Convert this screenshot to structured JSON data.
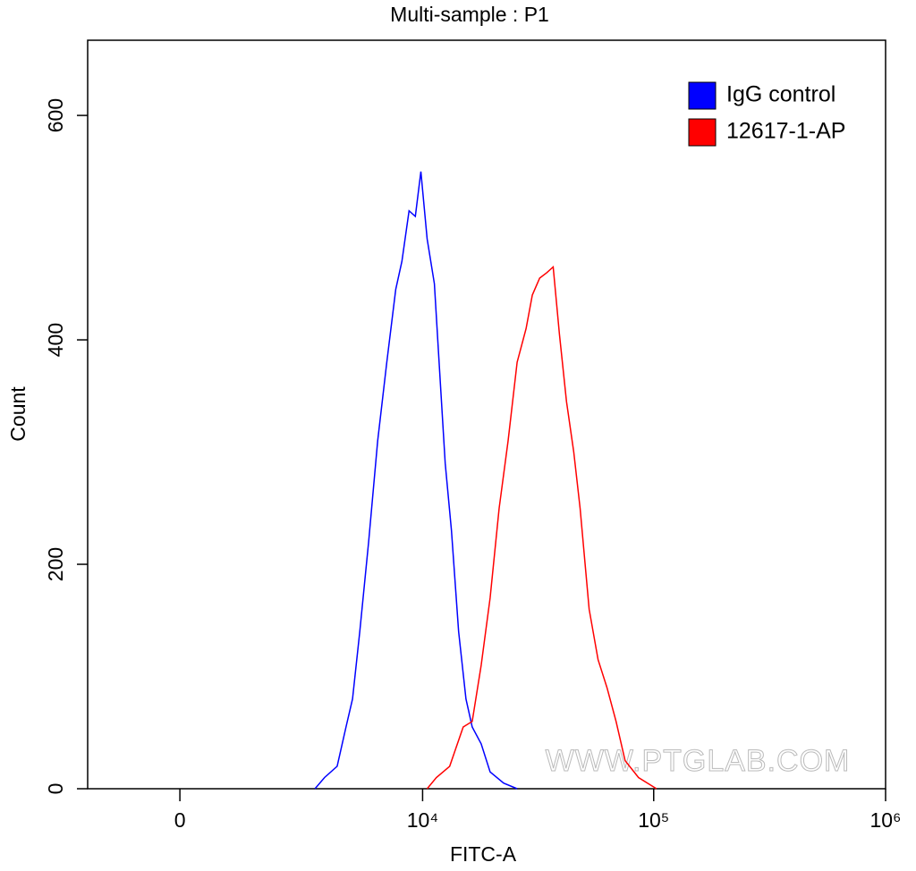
{
  "chart_data": {
    "type": "line",
    "title": "Multi-sample : P1",
    "x_label": "FITC-A",
    "y_label": "Count",
    "xscale": "asinh",
    "xlim": [
      -1900,
      1000000
    ],
    "xticks": [
      0,
      {
        "value": 10000,
        "label": "10⁴"
      },
      {
        "value": 100000,
        "label": "10⁵"
      },
      {
        "value": 1000000,
        "label": "10⁶"
      }
    ],
    "ylim": [
      0,
      667
    ],
    "yticks": [
      0,
      200,
      400,
      600
    ],
    "legend": "top-right",
    "watermark": "WWW.PTGLAB.COM",
    "series": [
      {
        "name": "IgG control",
        "color": "#0000ff",
        "x": [
          3224,
          3591,
          4124,
          4537,
          4866,
          5252,
          5759,
          6328,
          6947,
          7613,
          8110,
          8722,
          9290,
          9826,
          10468,
          11264,
          11772,
          12550,
          13365,
          14361,
          15448,
          16444,
          17983,
          19667,
          22493,
          25734
        ],
        "values": [
          0,
          10,
          20,
          55,
          80,
          140,
          220,
          310,
          380,
          445,
          470,
          515,
          510,
          550,
          490,
          450,
          385,
          290,
          230,
          140,
          80,
          55,
          40,
          15,
          5,
          0
        ]
      },
      {
        "name": "12617-1-AP",
        "color": "#ff0000",
        "x": [
          10468,
          11482,
          13130,
          15031,
          16444,
          17983,
          19667,
          21515,
          23525,
          25734,
          28143,
          29954,
          32200,
          34608,
          36836,
          39190,
          42070,
          45184,
          48136,
          52646,
          57572,
          62914,
          68800,
          75247,
          86022,
          102865
        ],
        "values": [
          0,
          10,
          20,
          55,
          60,
          110,
          170,
          250,
          310,
          380,
          410,
          440,
          455,
          460,
          465,
          405,
          345,
          300,
          250,
          160,
          115,
          90,
          60,
          25,
          10,
          0
        ]
      }
    ]
  }
}
